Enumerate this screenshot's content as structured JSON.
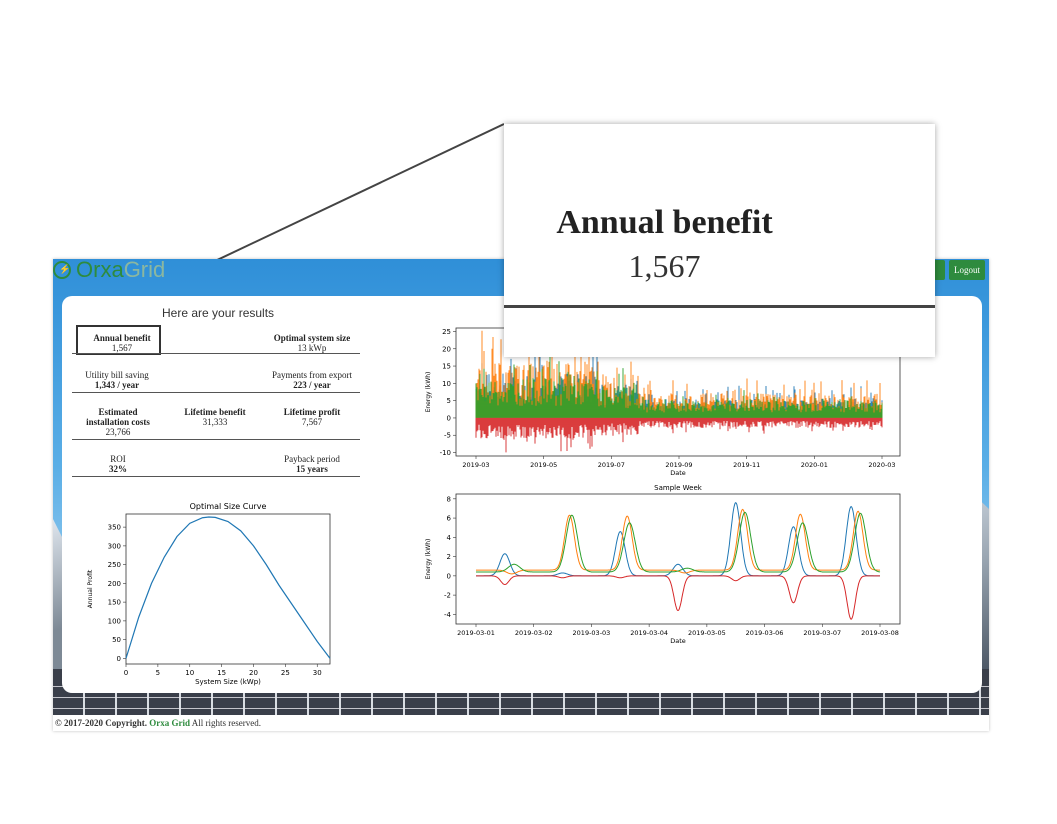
{
  "app": {
    "brand_part1": "Orxa",
    "brand_part2": "Grid",
    "logout_label": "Logout"
  },
  "results": {
    "title": "Here are your results",
    "annual_benefit": {
      "label": "Annual benefit",
      "value": "1,567"
    },
    "optimal_size": {
      "label": "Optimal system size",
      "value": "13 kWp"
    },
    "utility_saving": {
      "label": "Utility bill saving",
      "value": "1,343 / year"
    },
    "export_payments": {
      "label": "Payments from export",
      "value": "223 / year"
    },
    "install_costs": {
      "label_line1": "Estimated",
      "label_line2": "installation costs",
      "value": "23,766"
    },
    "lifetime_benefit": {
      "label": "Lifetime benefit",
      "value": "31,333"
    },
    "lifetime_profit": {
      "label": "Lifetime profit",
      "value": "7,567"
    },
    "roi": {
      "label": "ROI",
      "value": "32%"
    },
    "payback": {
      "label": "Payback period",
      "value": "15 years"
    }
  },
  "footer": {
    "prefix": "© 2017-2020 Copyright.",
    "brand": "Orxa Grid",
    "suffix": "All rights reserved."
  },
  "zoom": {
    "label": "Annual benefit",
    "value": "1,567"
  },
  "colors": {
    "accent": "#2e8b3e",
    "blue": "#1f77b4",
    "orange": "#ff7f0e",
    "green": "#2ca02c",
    "red": "#d62728"
  },
  "chart_data": [
    {
      "type": "line",
      "title": "Optimal Size Curve",
      "xlabel": "System Size (kWp)",
      "ylabel": "Annual Profit",
      "xlim": [
        0,
        32
      ],
      "ylim": [
        -15,
        385
      ],
      "x_ticks": [
        0,
        5,
        10,
        15,
        20,
        25,
        30
      ],
      "y_ticks": [
        0,
        50,
        100,
        150,
        200,
        250,
        300,
        350
      ],
      "series": [
        {
          "x": [
            0,
            2,
            4,
            6,
            8,
            10,
            12,
            13,
            14,
            16,
            18,
            20,
            22,
            24,
            26,
            28,
            30,
            32
          ],
          "values": [
            0,
            110,
            200,
            270,
            325,
            360,
            375,
            377,
            376,
            365,
            340,
            300,
            250,
            195,
            145,
            95,
            45,
            0
          ]
        }
      ]
    },
    {
      "type": "line",
      "title": "",
      "xlabel": "Date",
      "ylabel": "Energy (kWh)",
      "x_ticks": [
        "2019-03",
        "2019-05",
        "2019-07",
        "2019-09",
        "2019-11",
        "2020-01",
        "2020-03"
      ],
      "y_ticks": [
        -10,
        -5,
        0,
        5,
        10,
        15,
        20,
        25
      ],
      "ylim": [
        -11,
        26
      ]
    },
    {
      "type": "line",
      "title": "Sample Week",
      "xlabel": "Date",
      "ylabel": "Energy (kWh)",
      "x_ticks": [
        "2019-03-01",
        "2019-03-02",
        "2019-03-03",
        "2019-03-04",
        "2019-03-05",
        "2019-03-06",
        "2019-03-07",
        "2019-03-08"
      ],
      "y_ticks": [
        -4,
        -2,
        0,
        2,
        4,
        6,
        8
      ],
      "ylim": [
        -5,
        8.5
      ]
    }
  ]
}
